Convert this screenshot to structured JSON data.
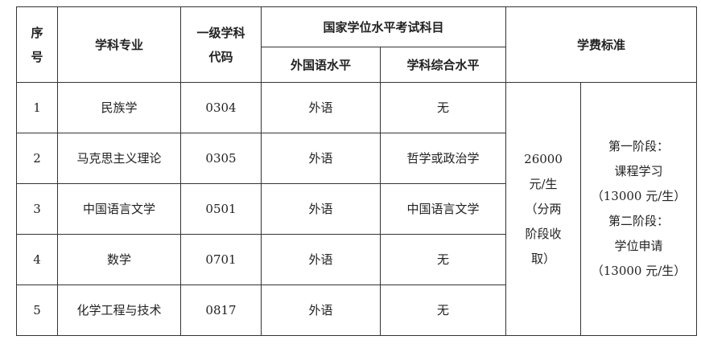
{
  "headers": {
    "seq": [
      "序",
      "号"
    ],
    "major": "学科专业",
    "code": [
      "一级学科",
      "代码"
    ],
    "exam_group": "国家学位水平考试科目",
    "exam_foreign": "外国语水平",
    "exam_subject": "学科综合水平",
    "tuition": "学费标准"
  },
  "rows": [
    {
      "seq": "1",
      "major": "民族学",
      "code": "0304",
      "foreign": "外语",
      "subject": "无"
    },
    {
      "seq": "2",
      "major": "马克思主义理论",
      "code": "0305",
      "foreign": "外语",
      "subject": "哲学或政治学"
    },
    {
      "seq": "3",
      "major": "中国语言文学",
      "code": "0501",
      "foreign": "外语",
      "subject": "中国语言文学"
    },
    {
      "seq": "4",
      "major": "数学",
      "code": "0701",
      "foreign": "外语",
      "subject": "无"
    },
    {
      "seq": "5",
      "major": "化学工程与技术",
      "code": "0817",
      "foreign": "外语",
      "subject": "无"
    }
  ],
  "tuition": {
    "total": [
      "26000",
      "元/生",
      "（分两",
      "阶段收",
      "取）"
    ],
    "stages": [
      "第一阶段：",
      "课程学习",
      "（13000 元/生）",
      "第二阶段：",
      "学位申请",
      "（13000 元/生）"
    ]
  }
}
